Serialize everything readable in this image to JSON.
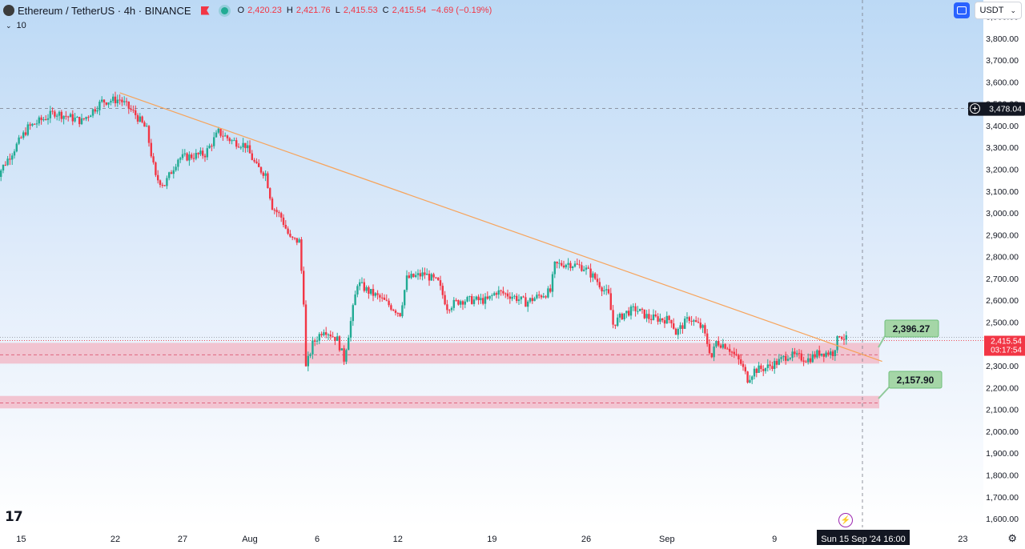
{
  "header": {
    "symbol_full": "Ethereum / TetherUS · 4h · BINANCE",
    "ohlc": [
      {
        "label": "O",
        "value": "2,420.23"
      },
      {
        "label": "H",
        "value": "2,421.76"
      },
      {
        "label": "L",
        "value": "2,415.53"
      },
      {
        "label": "C",
        "value": "2,415.54"
      }
    ],
    "change": "−4.69 (−0.19%)",
    "indicator_count": "10",
    "currency": "USDT"
  },
  "colors": {
    "up": "#22ab94",
    "down": "#f23645",
    "trendline": "#f7a35a",
    "zone": "#f2b8c6",
    "label_box": "#a5d6a7",
    "crosshair_bg": "#131722"
  },
  "chart_data": {
    "type": "candlestick",
    "series": [
      {
        "name": "Ethereum / TetherUS · 4h · BINANCE",
        "anchors": [
          [
            "2024-07-13 00:00",
            3150
          ],
          [
            "2024-07-15 12:00",
            3390
          ],
          [
            "2024-07-17 12:00",
            3460
          ],
          [
            "2024-07-19 12:00",
            3420
          ],
          [
            "2024-07-21 00:00",
            3510
          ],
          [
            "2024-07-22 08:00",
            3520
          ],
          [
            "2024-07-23 12:00",
            3450
          ],
          [
            "2024-07-24 08:00",
            3380
          ],
          [
            "2024-07-25 00:00",
            3160
          ],
          [
            "2024-07-25 16:00",
            3130
          ],
          [
            "2024-07-26 16:00",
            3250
          ],
          [
            "2024-07-28 16:00",
            3270
          ],
          [
            "2024-07-29 16:00",
            3370
          ],
          [
            "2024-07-30 16:00",
            3330
          ],
          [
            "2024-07-31 16:00",
            3310
          ],
          [
            "2024-08-01 12:00",
            3210
          ],
          [
            "2024-08-02 04:00",
            3180
          ],
          [
            "2024-08-02 16:00",
            3030
          ],
          [
            "2024-08-03 08:00",
            2980
          ],
          [
            "2024-08-04 00:00",
            2880
          ],
          [
            "2024-08-04 16:00",
            2870
          ],
          [
            "2024-08-05 00:00",
            2600
          ],
          [
            "2024-08-05 04:00",
            2290
          ],
          [
            "2024-08-05 16:00",
            2400
          ],
          [
            "2024-08-06 12:00",
            2470
          ],
          [
            "2024-08-07 12:00",
            2420
          ],
          [
            "2024-08-08 00:00",
            2330
          ],
          [
            "2024-08-08 16:00",
            2560
          ],
          [
            "2024-08-09 00:00",
            2680
          ],
          [
            "2024-08-09 20:00",
            2640
          ],
          [
            "2024-08-10 16:00",
            2610
          ],
          [
            "2024-08-12 04:00",
            2540
          ],
          [
            "2024-08-12 16:00",
            2700
          ],
          [
            "2024-08-14 00:00",
            2720
          ],
          [
            "2024-08-15 00:00",
            2680
          ],
          [
            "2024-08-15 16:00",
            2570
          ],
          [
            "2024-08-16 16:00",
            2600
          ],
          [
            "2024-08-18 16:00",
            2600
          ],
          [
            "2024-08-19 08:00",
            2640
          ],
          [
            "2024-08-20 12:00",
            2620
          ],
          [
            "2024-08-21 12:00",
            2590
          ],
          [
            "2024-08-22 12:00",
            2620
          ],
          [
            "2024-08-23 08:00",
            2640
          ],
          [
            "2024-08-23 16:00",
            2760
          ],
          [
            "2024-08-24 16:00",
            2770
          ],
          [
            "2024-08-25 20:00",
            2750
          ],
          [
            "2024-08-26 16:00",
            2700
          ],
          [
            "2024-08-27 16:00",
            2620
          ],
          [
            "2024-08-28 00:00",
            2490
          ],
          [
            "2024-08-28 20:00",
            2540
          ],
          [
            "2024-08-29 16:00",
            2560
          ],
          [
            "2024-08-30 16:00",
            2520
          ],
          [
            "2024-09-01 08:00",
            2510
          ],
          [
            "2024-09-01 16:00",
            2450
          ],
          [
            "2024-09-02 16:00",
            2520
          ],
          [
            "2024-09-03 16:00",
            2470
          ],
          [
            "2024-09-04 08:00",
            2340
          ],
          [
            "2024-09-04 16:00",
            2410
          ],
          [
            "2024-09-05 12:00",
            2390
          ],
          [
            "2024-09-06 12:00",
            2310
          ],
          [
            "2024-09-07 00:00",
            2240
          ],
          [
            "2024-09-07 12:00",
            2280
          ],
          [
            "2024-09-08 08:00",
            2290
          ],
          [
            "2024-09-09 08:00",
            2320
          ],
          [
            "2024-09-10 00:00",
            2350
          ],
          [
            "2024-09-11 12:00",
            2330
          ],
          [
            "2024-09-12 08:00",
            2360
          ],
          [
            "2024-09-13 08:00",
            2360
          ],
          [
            "2024-09-13 20:00",
            2445
          ],
          [
            "2024-09-14 08:00",
            2420
          ]
        ]
      }
    ],
    "last_price": "2,415.54",
    "countdown": "03:17:54",
    "crosshair": {
      "price": "3,478.04",
      "date": "Sun 15 Sep '24",
      "time": "16:00"
    },
    "trendline": {
      "start": [
        "2024-07-22 08:00",
        3550
      ],
      "end": [
        "2024-09-17 00:00",
        2320
      ]
    },
    "zones": [
      {
        "price_high": 2405,
        "price_low": 2310,
        "mid": 2350,
        "label": "2,396.27",
        "label_price": "2,396.27"
      },
      {
        "price_high": 2162,
        "price_low": 2105,
        "mid": 2130,
        "label": "2,157.90",
        "label_price": "2,157.90"
      }
    ],
    "y_axis": {
      "min": 1560,
      "max": 3975,
      "ticks": [
        "3,900.00",
        "3,800.00",
        "3,700.00",
        "3,600.00",
        "3,500.00",
        "3,400.00",
        "3,300.00",
        "3,200.00",
        "3,100.00",
        "3,000.00",
        "2,900.00",
        "2,800.00",
        "2,700.00",
        "2,600.00",
        "2,500.00",
        "2,400.00",
        "2,300.00",
        "2,200.00",
        "2,100.00",
        "2,000.00",
        "1,900.00",
        "1,800.00",
        "1,700.00",
        "1,600.00"
      ]
    },
    "x_axis": {
      "ticks": [
        {
          "date": "2024-07-15",
          "label": "15"
        },
        {
          "date": "2024-07-22",
          "label": "22"
        },
        {
          "date": "2024-07-27",
          "label": "27"
        },
        {
          "date": "2024-08-01",
          "label": "Aug"
        },
        {
          "date": "2024-08-06",
          "label": "6"
        },
        {
          "date": "2024-08-12",
          "label": "12"
        },
        {
          "date": "2024-08-19",
          "label": "19"
        },
        {
          "date": "2024-08-26",
          "label": "26"
        },
        {
          "date": "2024-09-01",
          "label": "Sep"
        },
        {
          "date": "2024-09-09",
          "label": "9"
        },
        {
          "date": "2024-09-23",
          "label": "23"
        }
      ]
    },
    "grid": false,
    "background": "gradient light blue to white"
  }
}
